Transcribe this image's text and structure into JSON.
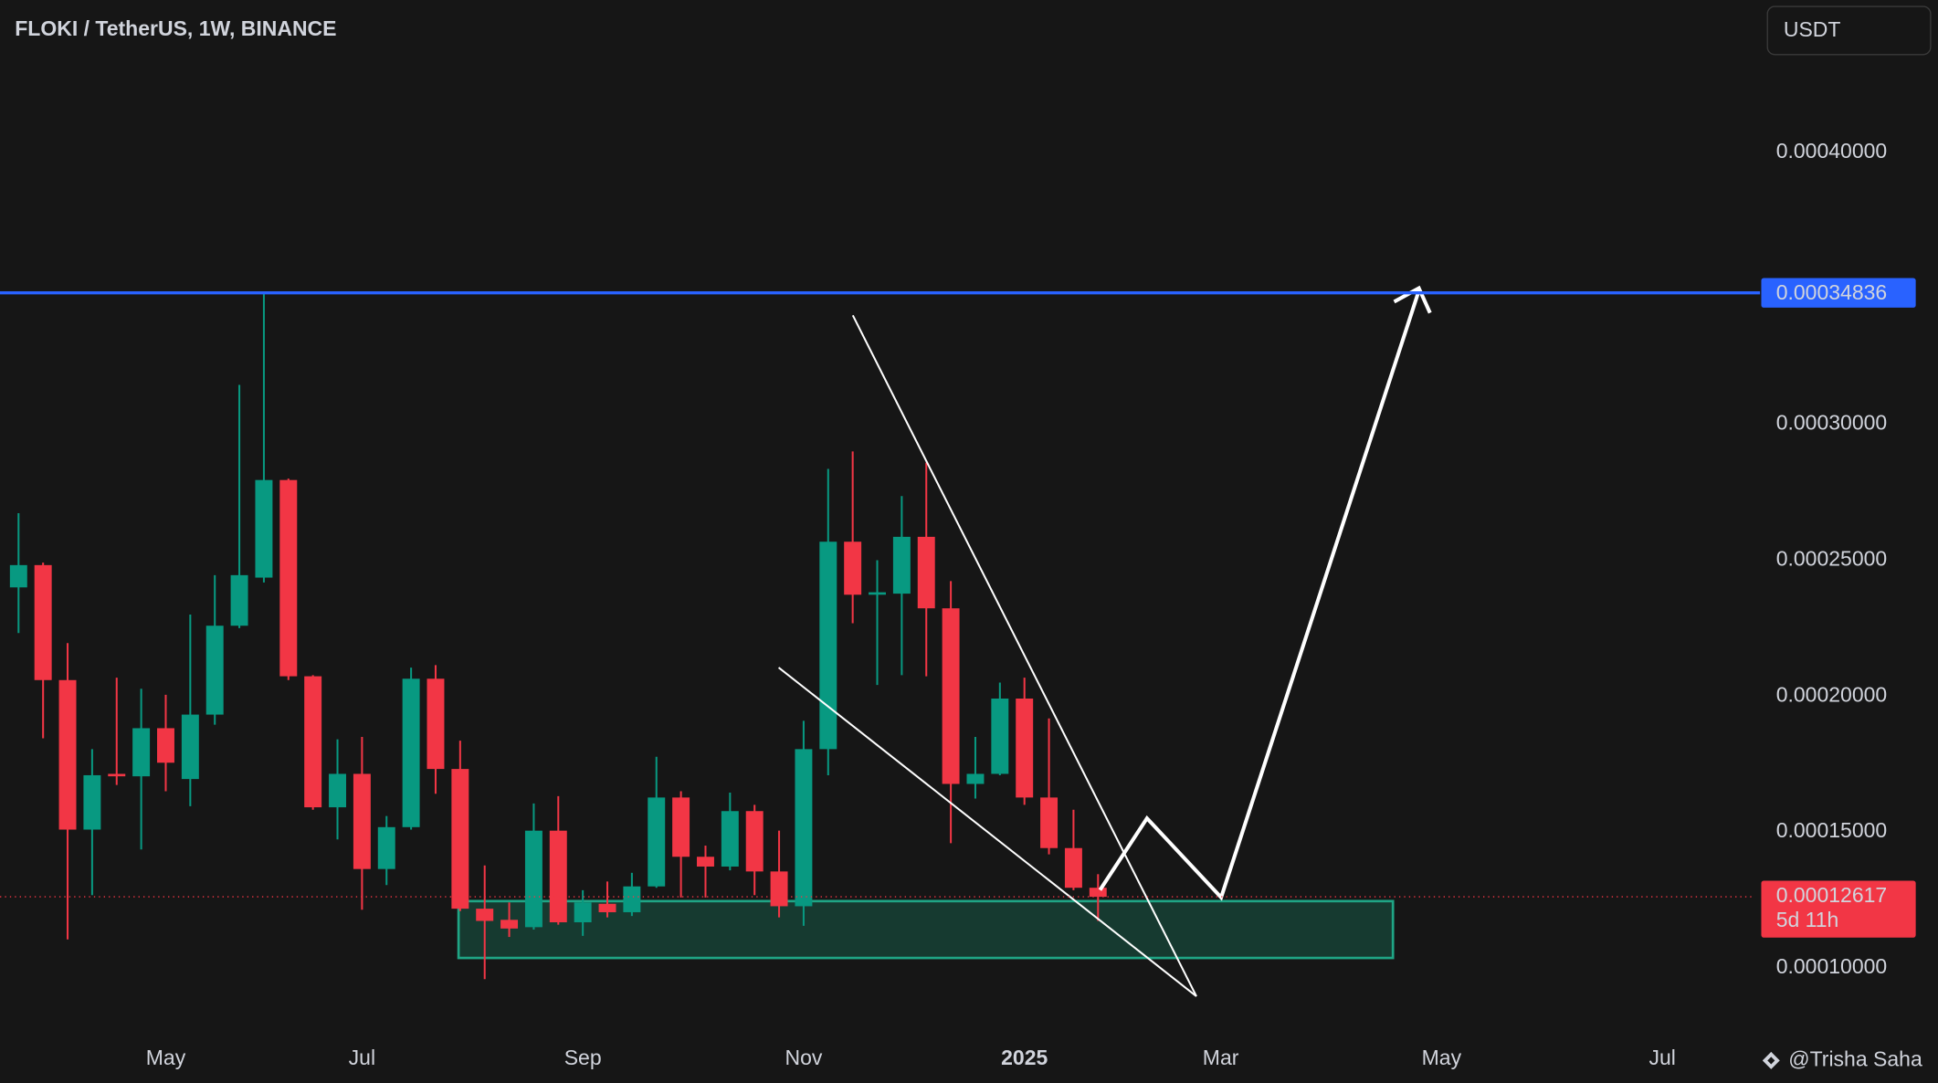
{
  "chart_data": {
    "type": "candlestick",
    "title": "FLOKI / TetherUS, 1W, BINANCE",
    "currency": "USDT",
    "watermark": "@Trisha Saha",
    "up_color": "#089981",
    "down_color": "#f23645",
    "categories": [
      null,
      null,
      null,
      null,
      null,
      null,
      "May",
      null,
      null,
      null,
      null,
      null,
      null,
      null,
      "Jul",
      null,
      null,
      null,
      null,
      null,
      null,
      null,
      null,
      "Sep",
      null,
      null,
      null,
      null,
      null,
      null,
      null,
      null,
      "Nov",
      null,
      null,
      null,
      null,
      null,
      null,
      null,
      null,
      "2025",
      null,
      null,
      null,
      null,
      null,
      null,
      null,
      "Mar",
      null,
      null,
      null,
      null,
      null,
      null,
      null,
      null,
      "May",
      null,
      null,
      null,
      null,
      null,
      null,
      null,
      null,
      "Jul",
      null,
      null,
      null
    ],
    "open": [
      0.00024,
      0.0002482,
      0.0002059,
      0.0001509,
      0.0001714,
      0.0001705,
      0.0001882,
      0.0001695,
      0.0001932,
      0.0002259,
      0.0002436,
      0.0002795,
      0.0002073,
      0.0001591,
      0.0001714,
      0.0001364,
      0.0001518,
      0.0002064,
      0.0001732,
      0.0001218,
      0.0001177,
      0.000115,
      0.0001505,
      0.0001168,
      0.0001236,
      0.0001205,
      0.00013,
      0.0001627,
      0.0001409,
      0.0001373,
      0.0001577,
      0.0001355,
      0.0001227,
      0.0001805,
      0.0002568,
      0.0002373,
      0.0002377,
      0.0002586,
      0.0002323,
      0.0001677,
      0.0001714,
      0.0001991,
      0.0001627,
      0.0001441,
      0.0001295,
      null,
      null,
      null,
      null,
      null,
      null,
      null,
      null,
      null,
      null,
      null,
      null,
      null,
      null,
      null,
      null,
      null,
      null,
      null,
      null,
      null,
      null,
      null,
      null,
      null,
      null
    ],
    "high": [
      0.0002673,
      0.0002491,
      0.0002195,
      0.0001805,
      0.0002068,
      0.0002027,
      0.0002005,
      0.00023,
      0.0002445,
      0.0003145,
      0.00034836,
      0.00028,
      0.0002077,
      0.0001841,
      0.000185,
      0.0001559,
      0.0002105,
      0.0002114,
      0.0001836,
      0.0001377,
      0.0001241,
      0.0001605,
      0.0001632,
      0.0001286,
      0.0001318,
      0.000135,
      0.0001777,
      0.000165,
      0.000145,
      0.0001645,
      0.00016,
      0.0001505,
      0.0001909,
      0.0002836,
      0.00029,
      0.00025,
      0.0002736,
      0.0002859,
      0.0002423,
      0.000185,
      0.000205,
      0.0002068,
      0.0001918,
      0.0001582,
      0.0001345,
      null,
      null,
      null,
      null,
      null,
      null,
      null,
      null,
      null,
      null,
      null,
      null,
      null,
      null,
      null,
      null,
      null,
      null,
      null,
      null,
      null,
      null,
      null,
      null,
      null,
      null
    ],
    "low": [
      0.0002232,
      0.0001845,
      0.0001105,
      0.0001268,
      0.0001673,
      0.0001436,
      0.000165,
      0.0001595,
      0.0001895,
      0.000225,
      0.0002418,
      0.0002059,
      0.0001582,
      0.0001473,
      0.0001214,
      0.0001305,
      0.0001509,
      0.0001641,
      0.0001209,
      9.59e-05,
      0.0001114,
      0.0001141,
      0.0001159,
      0.0001118,
      0.0001186,
      0.0001191,
      0.0001295,
      0.0001259,
      0.0001259,
      0.0001359,
      0.0001268,
      0.0001186,
      0.0001155,
      0.0001709,
      0.0002268,
      0.0002041,
      0.0002077,
      0.0002073,
      0.0001459,
      0.0001623,
      0.0001709,
      0.00016,
      0.0001418,
      0.0001286,
      0.0001173,
      null,
      null,
      null,
      null,
      null,
      null,
      null,
      null,
      null,
      null,
      null,
      null,
      null,
      null,
      null,
      null,
      null,
      null,
      null,
      null,
      null,
      null,
      null,
      null,
      null,
      null
    ],
    "close": [
      0.0002482,
      0.0002059,
      0.0001509,
      0.0001709,
      0.0001705,
      0.0001882,
      0.0001755,
      0.0001932,
      0.0002259,
      0.0002445,
      0.0002795,
      0.0002073,
      0.0001591,
      0.0001714,
      0.0001364,
      0.0001518,
      0.0002064,
      0.0001732,
      0.0001218,
      0.0001173,
      0.0001145,
      0.0001505,
      0.0001168,
      0.0001241,
      0.0001205,
      0.00013,
      0.0001627,
      0.0001409,
      0.0001373,
      0.0001577,
      0.0001355,
      0.0001227,
      0.0001805,
      0.0002568,
      0.0002373,
      0.0002382,
      0.0002586,
      0.0002323,
      0.0001677,
      0.0001714,
      0.0001991,
      0.0001627,
      0.0001441,
      0.0001295,
      0.00012617,
      null,
      null,
      null,
      null,
      null,
      null,
      null,
      null,
      null,
      null,
      null,
      null,
      null,
      null,
      null,
      null,
      null,
      null,
      null,
      null,
      null,
      null,
      null,
      null,
      null,
      null
    ],
    "last_price_label": "0.00012617",
    "countdown": "5d 11h",
    "hlines": [
      {
        "value": 0.00034836,
        "label": "0.00034836",
        "color": "#2962ff"
      }
    ],
    "ylim": [
      7.64e-05,
      0.000456
    ],
    "yticks": [
      {
        "value": 0.0001,
        "label": "0.00010000"
      },
      {
        "value": 0.00015,
        "label": "0.00015000"
      },
      {
        "value": 0.0002,
        "label": "0.00020000"
      },
      {
        "value": 0.00025,
        "label": "0.00025000"
      },
      {
        "value": 0.0003,
        "label": "0.00030000"
      },
      {
        "value": 0.0004,
        "label": "0.00040000"
      }
    ]
  }
}
